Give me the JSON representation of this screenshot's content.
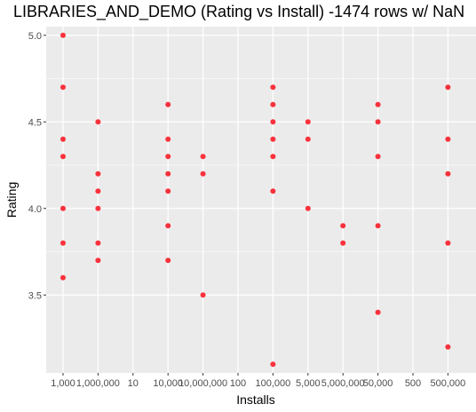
{
  "chart_data": {
    "type": "scatter",
    "title": "LIBRARIES_AND_DEMO (Rating vs Install) -1474 rows w/ NaN",
    "xlabel": "Installs",
    "ylabel": "Rating",
    "x_categories": [
      "1,000",
      "1,000,000",
      "10",
      "10,000",
      "10,000,000",
      "100",
      "100,000",
      "5,000",
      "5,000,000",
      "50,000",
      "500",
      "500,000"
    ],
    "y_ticks": [
      3.5,
      4.0,
      4.5,
      5.0
    ],
    "y_tick_labels": [
      "3.5",
      "4.0",
      "4.5",
      "5.0"
    ],
    "ylim": [
      3.05,
      5.05
    ],
    "point_color": "#f8323c",
    "panel_color": "#ebebeb",
    "grid_color": "#ffffff",
    "grid": true,
    "points": [
      {
        "x": "1,000",
        "y": 5.0
      },
      {
        "x": "1,000",
        "y": 4.7
      },
      {
        "x": "1,000",
        "y": 4.4
      },
      {
        "x": "1,000",
        "y": 4.3
      },
      {
        "x": "1,000",
        "y": 4.0
      },
      {
        "x": "1,000",
        "y": 3.8
      },
      {
        "x": "1,000",
        "y": 3.6
      },
      {
        "x": "1,000,000",
        "y": 4.5
      },
      {
        "x": "1,000,000",
        "y": 4.2
      },
      {
        "x": "1,000,000",
        "y": 4.1
      },
      {
        "x": "1,000,000",
        "y": 4.0
      },
      {
        "x": "1,000,000",
        "y": 3.8
      },
      {
        "x": "1,000,000",
        "y": 3.7
      },
      {
        "x": "10,000",
        "y": 4.6
      },
      {
        "x": "10,000",
        "y": 4.4
      },
      {
        "x": "10,000",
        "y": 4.3
      },
      {
        "x": "10,000",
        "y": 4.2
      },
      {
        "x": "10,000",
        "y": 4.1
      },
      {
        "x": "10,000",
        "y": 3.9
      },
      {
        "x": "10,000",
        "y": 3.7
      },
      {
        "x": "10,000,000",
        "y": 4.3
      },
      {
        "x": "10,000,000",
        "y": 4.2
      },
      {
        "x": "10,000,000",
        "y": 3.5
      },
      {
        "x": "100,000",
        "y": 4.7
      },
      {
        "x": "100,000",
        "y": 4.6
      },
      {
        "x": "100,000",
        "y": 4.5
      },
      {
        "x": "100,000",
        "y": 4.4
      },
      {
        "x": "100,000",
        "y": 4.3
      },
      {
        "x": "100,000",
        "y": 4.1
      },
      {
        "x": "100,000",
        "y": 3.1
      },
      {
        "x": "5,000",
        "y": 4.5
      },
      {
        "x": "5,000",
        "y": 4.4
      },
      {
        "x": "5,000",
        "y": 4.0
      },
      {
        "x": "5,000,000",
        "y": 3.9
      },
      {
        "x": "5,000,000",
        "y": 3.8
      },
      {
        "x": "50,000",
        "y": 4.6
      },
      {
        "x": "50,000",
        "y": 4.5
      },
      {
        "x": "50,000",
        "y": 4.3
      },
      {
        "x": "50,000",
        "y": 3.9
      },
      {
        "x": "50,000",
        "y": 3.4
      },
      {
        "x": "500,000",
        "y": 4.7
      },
      {
        "x": "500,000",
        "y": 4.4
      },
      {
        "x": "500,000",
        "y": 4.2
      },
      {
        "x": "500,000",
        "y": 3.8
      },
      {
        "x": "500,000",
        "y": 3.2
      }
    ]
  }
}
